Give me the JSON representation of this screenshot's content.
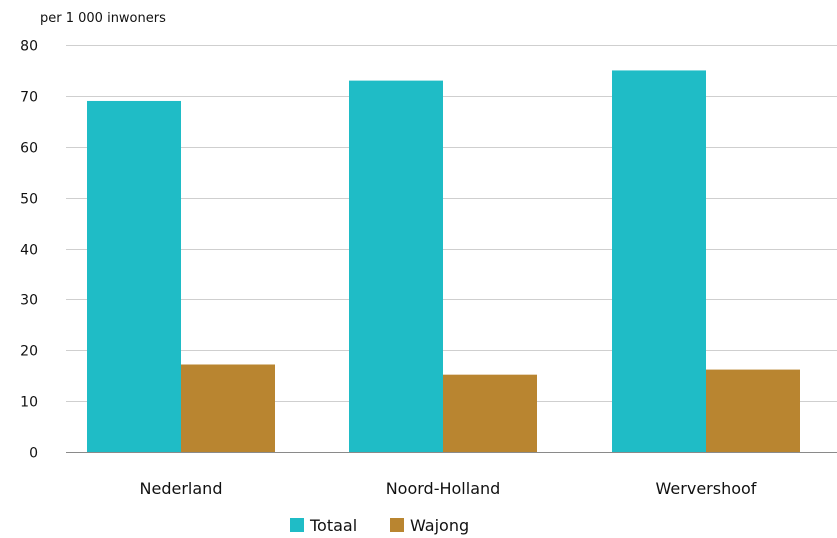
{
  "chart_data": {
    "type": "bar",
    "ylabel": "per 1 000 inwoners",
    "categories": [
      "Nederland",
      "Noord-Holland",
      "Wervershoof"
    ],
    "series": [
      {
        "name": "Totaal",
        "values": [
          69,
          73,
          75
        ],
        "color": "#1fbcc6"
      },
      {
        "name": "Wajong",
        "values": [
          17.2,
          15.2,
          16.2
        ],
        "color": "#b98530"
      }
    ],
    "ylim": [
      0,
      80
    ],
    "yticks": [
      "0",
      "10",
      "20",
      "30",
      "40",
      "50",
      "60",
      "70",
      "80"
    ],
    "grid": true,
    "legend": "bottom-center"
  }
}
